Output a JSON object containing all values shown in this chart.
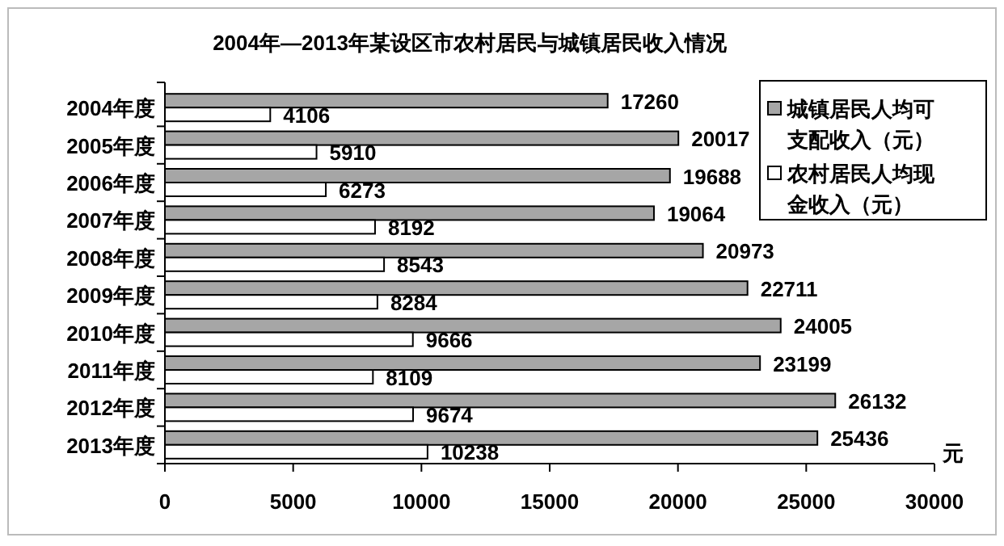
{
  "chart_data": {
    "type": "bar",
    "orientation": "horizontal",
    "title": "2004年—2013年某设区市农村居民与城镇居民收入情况",
    "xlabel": "元",
    "categories": [
      "2004年度",
      "2005年度",
      "2006年度",
      "2007年度",
      "2008年度",
      "2009年度",
      "2010年度",
      "2011年度",
      "2012年度",
      "2013年度"
    ],
    "series": [
      {
        "name": "城镇居民人均可支配收入（元）",
        "color": "#a6a6a6",
        "values": [
          17260,
          20017,
          19688,
          19064,
          20973,
          22711,
          24005,
          23199,
          26132,
          25436
        ]
      },
      {
        "name": "农村居民人均现金收入（元）",
        "color": "#ffffff",
        "values": [
          4106,
          5910,
          6273,
          8192,
          8543,
          8284,
          9666,
          8109,
          9674,
          10238
        ]
      }
    ],
    "xlim": [
      0,
      30000
    ],
    "xticks": [
      0,
      5000,
      10000,
      15000,
      20000,
      25000,
      30000
    ],
    "data_labels": true,
    "legend": "top right",
    "grid": false
  }
}
